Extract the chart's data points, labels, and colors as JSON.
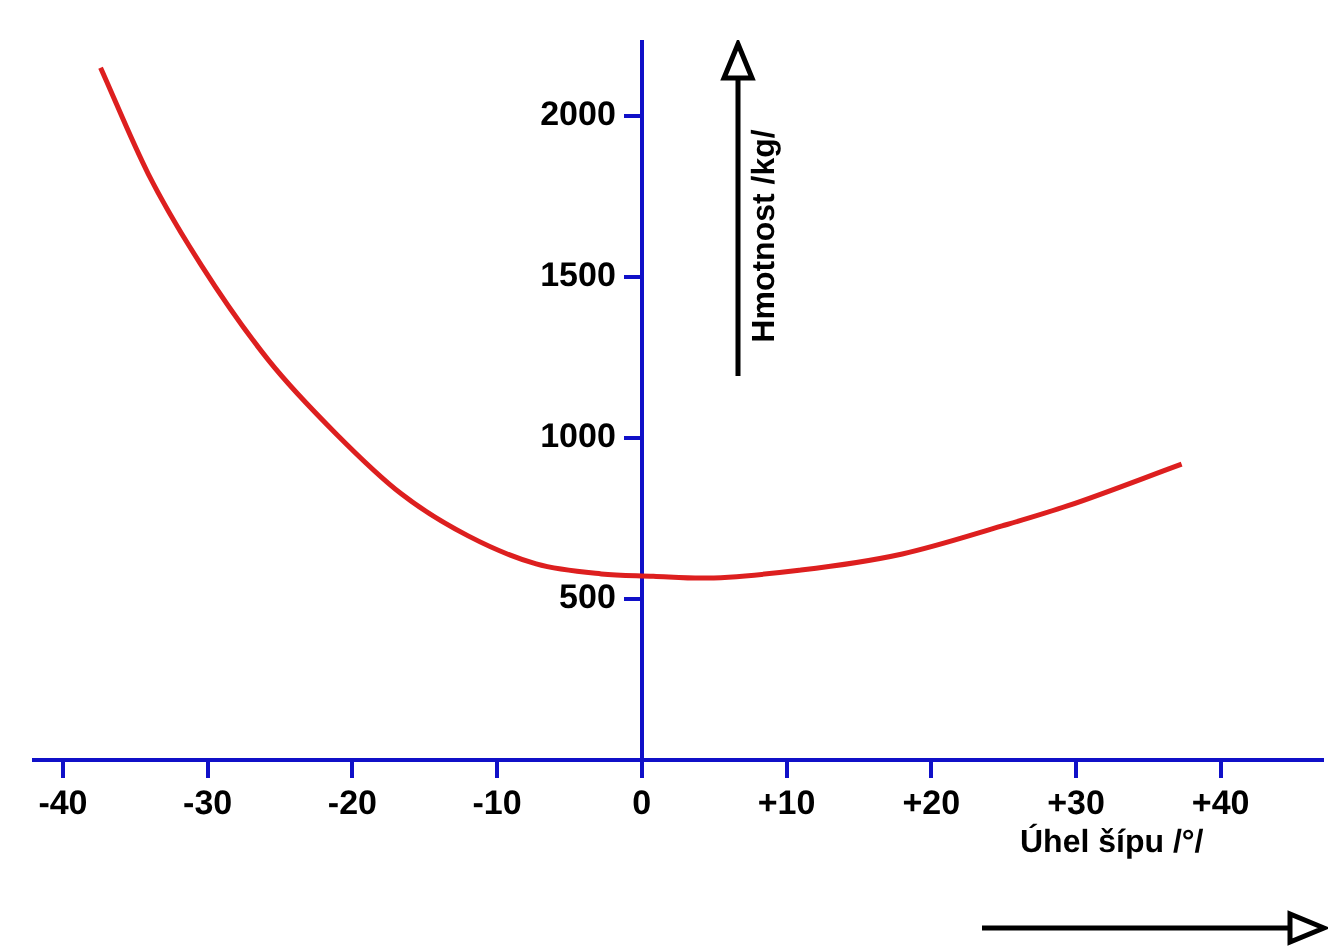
{
  "chart_data": {
    "type": "line",
    "xlabel": "Úhel šípu /°/",
    "ylabel": "Hmotnost /kg/",
    "series": [
      {
        "color": "#dd1f1f",
        "x": [
          -37.4,
          -34.1,
          -30.4,
          -25.8,
          -21.1,
          -16.6,
          -12,
          -7.3,
          -2.8,
          0.8,
          4.1,
          11,
          18,
          24.9,
          29.4,
          37.3
        ],
        "values": [
          2150,
          1820,
          1534,
          1242,
          1012,
          826,
          696,
          609,
          578,
          571,
          565,
          590,
          640,
          727,
          789,
          919
        ]
      }
    ],
    "xlim": [
      -42,
      47
    ],
    "ylim": [
      0,
      2230
    ],
    "xticks": [
      {
        "value": -40,
        "label": "-40"
      },
      {
        "value": -30,
        "label": "-30"
      },
      {
        "value": -20,
        "label": "-20"
      },
      {
        "value": -10,
        "label": "-10"
      },
      0,
      {
        "value": 10,
        "label": "+10"
      },
      {
        "value": 20,
        "label": "+20"
      },
      {
        "value": 30,
        "label": "+30"
      },
      {
        "value": 40,
        "label": "+40"
      }
    ],
    "yticks": [
      500,
      1000,
      1500,
      2000
    ],
    "grid": false,
    "legend": false,
    "marker": "none",
    "line_style": "solid"
  }
}
